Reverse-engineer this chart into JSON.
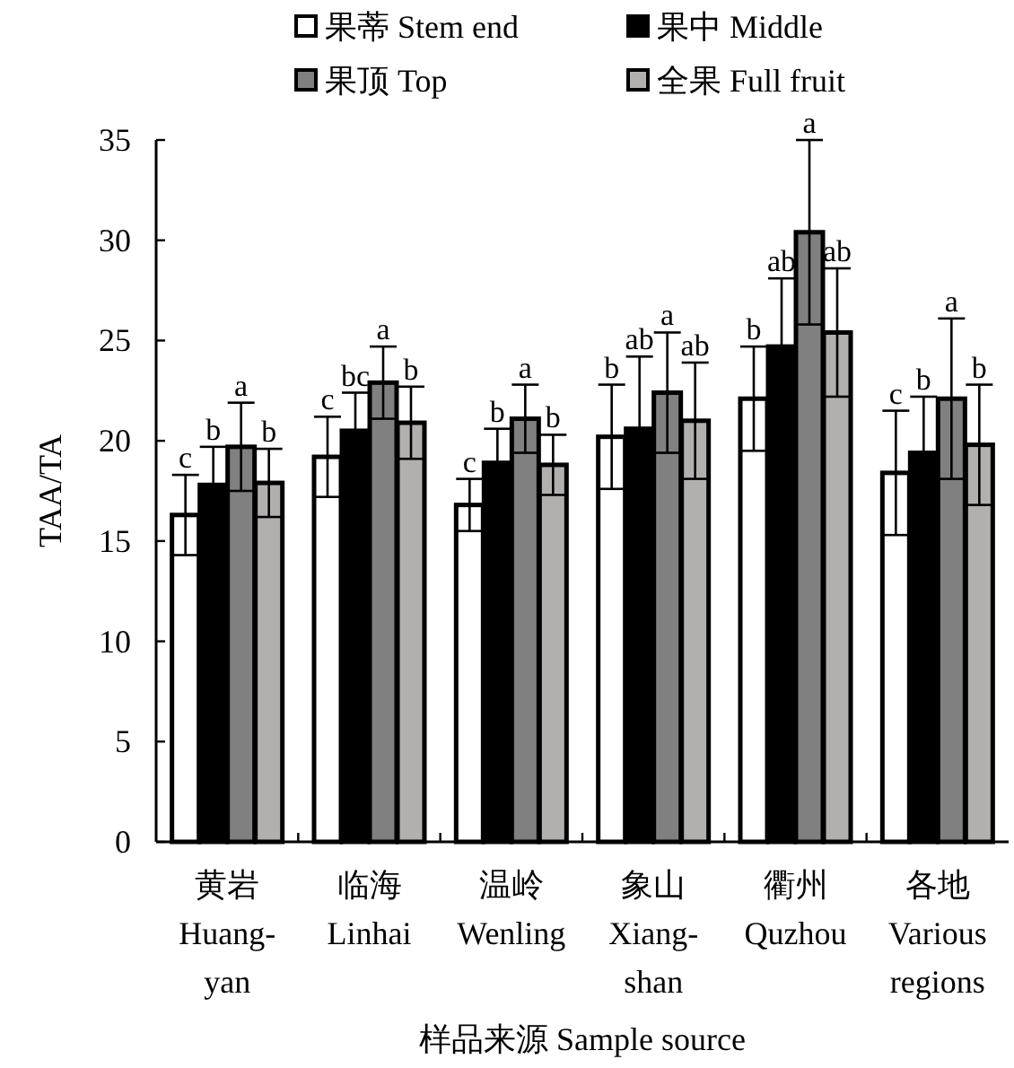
{
  "chart_data": {
    "type": "bar",
    "xlabel": "样品来源 Sample source",
    "ylabel": "TAA/TA",
    "categories": [
      "黄岩\nHuang-\nyan",
      "临海\nLinhai",
      "温岭\nWenling",
      "象山\nXiang-\nshan",
      "衢州\nQuzhou",
      "各地\nVarious\nregions"
    ],
    "ylim": [
      0,
      35
    ],
    "yticks": [
      0,
      5,
      10,
      15,
      20,
      25,
      30,
      35
    ],
    "legend": "top",
    "grid": false,
    "series": [
      {
        "name": "果蒂 Stem end",
        "color": "#ffffff",
        "values": [
          16.3,
          19.2,
          16.8,
          20.2,
          22.1,
          18.4
        ],
        "errors": [
          2.0,
          2.0,
          1.3,
          2.6,
          2.6,
          3.1
        ],
        "value_labels": [
          "c",
          "c",
          "c",
          "b",
          "b",
          "c"
        ]
      },
      {
        "name": "果中 Middle",
        "color": "#000000",
        "values": [
          17.8,
          20.5,
          18.9,
          20.6,
          24.7,
          19.4
        ],
        "errors": [
          1.9,
          1.9,
          1.7,
          3.6,
          3.4,
          2.8
        ],
        "value_labels": [
          "b",
          "bc",
          "b",
          "ab",
          "ab",
          "b"
        ]
      },
      {
        "name": "果顶 Top",
        "color": "#808080",
        "values": [
          19.7,
          22.9,
          21.1,
          22.4,
          30.4,
          22.1
        ],
        "errors": [
          2.2,
          1.8,
          1.7,
          3.0,
          4.6,
          4.0
        ],
        "value_labels": [
          "a",
          "a",
          "a",
          "a",
          "a",
          "a"
        ]
      },
      {
        "name": "全果 Full fruit",
        "color": "#b2afaf",
        "values": [
          17.9,
          20.9,
          18.8,
          21.0,
          25.4,
          19.8
        ],
        "errors": [
          1.7,
          1.8,
          1.5,
          2.9,
          3.2,
          3.0
        ],
        "value_labels": [
          "b",
          "b",
          "b",
          "ab",
          "ab",
          "b"
        ]
      }
    ]
  }
}
